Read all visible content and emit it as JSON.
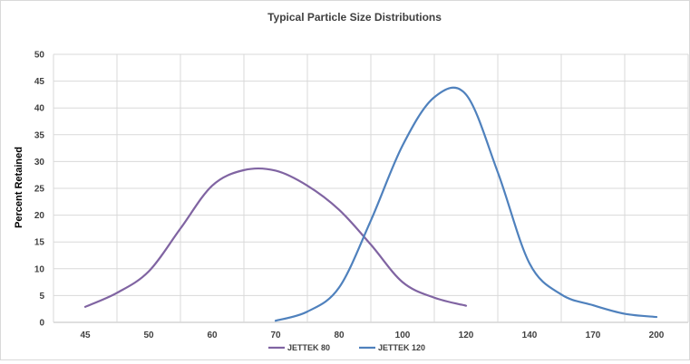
{
  "chart_data": {
    "type": "line",
    "title": "Typical Particle Size Distributions",
    "xlabel": "",
    "ylabel": "Percent  Retained",
    "categories": [
      "45",
      "50",
      "60",
      "70",
      "80",
      "100",
      "120",
      "140",
      "170",
      "200"
    ],
    "ylim": [
      0,
      50
    ],
    "yticks": [
      0,
      5,
      10,
      15,
      20,
      25,
      30,
      35,
      40,
      45,
      50
    ],
    "grid": true,
    "smooth": true,
    "legend_position": "bottom",
    "series": [
      {
        "name": "JETTEK 80",
        "color": "#8064a2",
        "points": [
          {
            "x": 45,
            "y": 2.9
          },
          {
            "x": 47.5,
            "y": 5.5
          },
          {
            "x": 50,
            "y": 9.5
          },
          {
            "x": 55,
            "y": 17.5
          },
          {
            "x": 60,
            "y": 25.5
          },
          {
            "x": 65,
            "y": 28.4
          },
          {
            "x": 70,
            "y": 28.3
          },
          {
            "x": 75,
            "y": 25.5
          },
          {
            "x": 80,
            "y": 21
          },
          {
            "x": 90,
            "y": 14.5
          },
          {
            "x": 100,
            "y": 7.5
          },
          {
            "x": 110,
            "y": 4.6
          },
          {
            "x": 120,
            "y": 3.1
          }
        ]
      },
      {
        "name": "JETTEK 120",
        "color": "#4f81bd",
        "points": [
          {
            "x": 70,
            "y": 0.3
          },
          {
            "x": 75,
            "y": 2
          },
          {
            "x": 80,
            "y": 6.5
          },
          {
            "x": 90,
            "y": 19
          },
          {
            "x": 100,
            "y": 33
          },
          {
            "x": 110,
            "y": 42
          },
          {
            "x": 120,
            "y": 42.5
          },
          {
            "x": 130,
            "y": 28
          },
          {
            "x": 140,
            "y": 11
          },
          {
            "x": 155,
            "y": 5.2
          },
          {
            "x": 170,
            "y": 3.2
          },
          {
            "x": 185,
            "y": 1.6
          },
          {
            "x": 200,
            "y": 1.0
          }
        ]
      }
    ]
  }
}
